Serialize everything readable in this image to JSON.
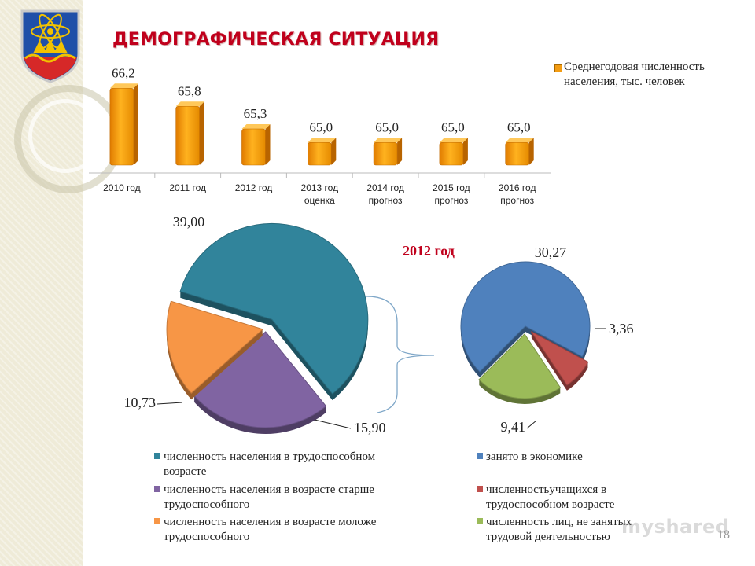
{
  "page": {
    "title": "ДЕМОГРАФИЧЕСКАЯ СИТУАЦИЯ",
    "page_number": "18",
    "watermark": "myshared",
    "colors": {
      "title": "#c0001c",
      "bar": "#f39c12",
      "working_age": "#31849b",
      "over_working_age": "#8064a2",
      "under_working_age": "#f79646",
      "employed": "#4f81bd",
      "students": "#c0504d",
      "not_employed": "#9bbb59"
    },
    "icons": [
      "city-emblem-icon"
    ]
  },
  "chart_data": [
    {
      "type": "bar",
      "categories": [
        "2010 год",
        "2011 год",
        "2012 год",
        "2013 год оценка",
        "2014 год прогноз",
        "2015 год прогноз",
        "2016 год прогноз"
      ],
      "series": [
        {
          "name": "Среднегодовая численность населения, тыс. человек",
          "values": [
            66.2,
            65.8,
            65.3,
            65.0,
            65.0,
            65.0,
            65.0
          ]
        }
      ],
      "value_labels": [
        "66,2",
        "65,8",
        "65,3",
        "65,0",
        "65,0",
        "65,0",
        "65,0"
      ],
      "ylim": [
        64.5,
        66.5
      ],
      "legend_position": "right",
      "grid": false
    },
    {
      "type": "pie",
      "categories": [
        "численность населения в трудоспособном возрасте",
        "численность населения в возрасте старше трудоспособного",
        "численность населения в возрасте моложе трудоспособного"
      ],
      "values": [
        39.0,
        15.9,
        10.73
      ],
      "value_labels": [
        "39,00",
        "15,90",
        "10,73"
      ],
      "legend_position": "bottom"
    },
    {
      "type": "pie",
      "title": "2012 год",
      "categories": [
        "занято в экономике",
        "численностьучащихся в трудоспособном возрасте",
        "численность лиц, не занятых трудовой деятельностью"
      ],
      "values": [
        30.27,
        3.36,
        9.41
      ],
      "value_labels": [
        "30,27",
        "3,36",
        "9,41"
      ],
      "legend_position": "bottom"
    }
  ]
}
